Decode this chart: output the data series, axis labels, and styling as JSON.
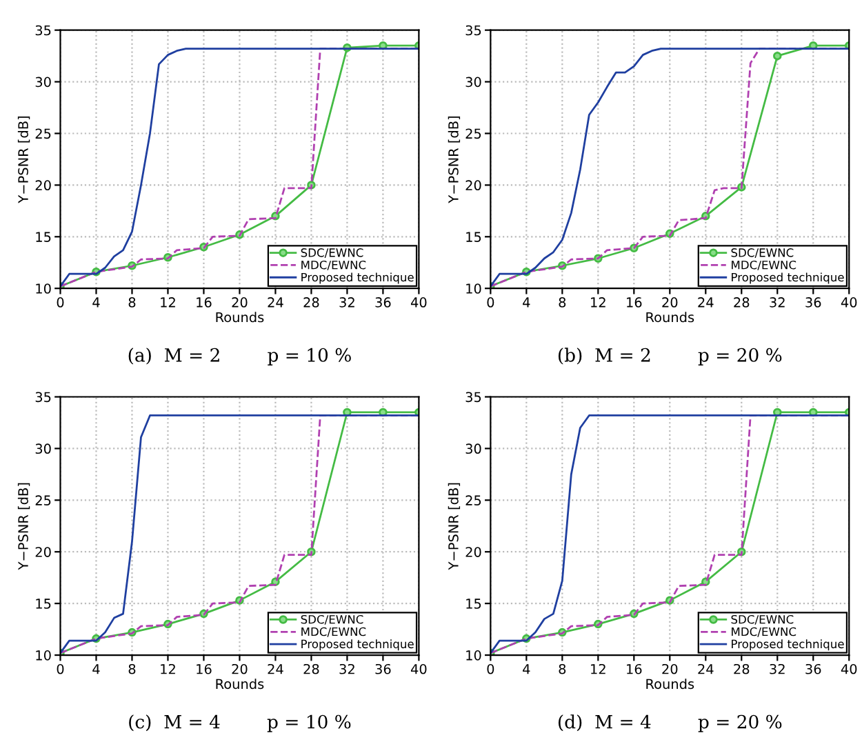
{
  "chart_data": [
    {
      "type": "line",
      "xlabel": "Rounds",
      "ylabel": "Y−PSNR [dB]",
      "xlim": [
        0,
        40
      ],
      "ylim": [
        10,
        35
      ],
      "xticks": [
        0,
        4,
        8,
        12,
        16,
        20,
        24,
        28,
        32,
        36,
        40
      ],
      "yticks": [
        10,
        15,
        20,
        25,
        30,
        35
      ],
      "grid": true,
      "legend": "bottom right",
      "annotations": [
        "(a)  M = 2        p = 10 %"
      ],
      "series": [
        {
          "name": "SDC/EWNC",
          "color": "#44bb44",
          "marker": "circle",
          "line_style": "solid",
          "x": [
            0,
            4,
            8,
            12,
            16,
            20,
            24,
            28,
            32,
            36,
            40
          ],
          "values": [
            10.2,
            11.6,
            12.2,
            13.0,
            14.0,
            15.2,
            17.0,
            20.0,
            33.3,
            33.5,
            33.5
          ]
        },
        {
          "name": "MDC/EWNC",
          "color": "#b040b0",
          "marker": "none",
          "line_style": "dashed",
          "x": [
            0,
            4,
            8,
            9,
            12,
            13,
            16,
            17,
            20,
            21,
            24,
            25,
            28,
            29,
            40
          ],
          "values": [
            10.2,
            11.6,
            12.1,
            12.8,
            12.9,
            13.7,
            13.9,
            15.0,
            15.1,
            16.7,
            16.8,
            19.7,
            19.7,
            33.2,
            33.2
          ]
        },
        {
          "name": "Proposed technique",
          "color": "#1f3fa0",
          "marker": "none",
          "line_style": "solid",
          "x": [
            0,
            1,
            4,
            5,
            6,
            7,
            8,
            9,
            10,
            11,
            12,
            13,
            14,
            40
          ],
          "values": [
            10.2,
            11.4,
            11.4,
            12.0,
            13.1,
            13.7,
            15.5,
            20.0,
            25.0,
            31.7,
            32.6,
            33.0,
            33.2,
            33.2
          ]
        }
      ]
    },
    {
      "type": "line",
      "xlabel": "Rounds",
      "ylabel": "Y−PSNR [dB]",
      "xlim": [
        0,
        40
      ],
      "ylim": [
        10,
        35
      ],
      "xticks": [
        0,
        4,
        8,
        12,
        16,
        20,
        24,
        28,
        32,
        36,
        40
      ],
      "yticks": [
        10,
        15,
        20,
        25,
        30,
        35
      ],
      "grid": true,
      "legend": "bottom right",
      "annotations": [
        "(b)  M = 2        p = 20 %"
      ],
      "series": [
        {
          "name": "SDC/EWNC",
          "color": "#44bb44",
          "marker": "circle",
          "line_style": "solid",
          "x": [
            0,
            4,
            8,
            12,
            16,
            20,
            24,
            28,
            32,
            36,
            40
          ],
          "values": [
            10.2,
            11.6,
            12.2,
            12.9,
            13.9,
            15.3,
            17.0,
            19.8,
            32.5,
            33.5,
            33.5
          ]
        },
        {
          "name": "MDC/EWNC",
          "color": "#b040b0",
          "marker": "none",
          "line_style": "dashed",
          "x": [
            0,
            4,
            8,
            9,
            12,
            13,
            16,
            17,
            20,
            21,
            24,
            25,
            26,
            28,
            29,
            30,
            40
          ],
          "values": [
            10.2,
            11.6,
            12.1,
            12.8,
            12.9,
            13.7,
            13.9,
            15.0,
            15.1,
            16.6,
            16.8,
            19.5,
            19.7,
            19.7,
            31.8,
            33.2,
            33.2
          ]
        },
        {
          "name": "Proposed technique",
          "color": "#1f3fa0",
          "marker": "none",
          "line_style": "solid",
          "x": [
            0,
            1,
            4,
            5,
            6,
            7,
            8,
            9,
            10,
            11,
            12,
            13,
            14,
            15,
            16,
            17,
            18,
            19,
            40
          ],
          "values": [
            10.2,
            11.4,
            11.4,
            12.0,
            12.9,
            13.5,
            14.7,
            17.3,
            21.5,
            26.8,
            28.0,
            29.5,
            30.9,
            30.9,
            31.5,
            32.6,
            33.0,
            33.2,
            33.2
          ]
        }
      ]
    },
    {
      "type": "line",
      "xlabel": "Rounds",
      "ylabel": "Y−PSNR [dB]",
      "xlim": [
        0,
        40
      ],
      "ylim": [
        10,
        35
      ],
      "xticks": [
        0,
        4,
        8,
        12,
        16,
        20,
        24,
        28,
        32,
        36,
        40
      ],
      "yticks": [
        10,
        15,
        20,
        25,
        30,
        35
      ],
      "grid": true,
      "legend": "bottom right",
      "annotations": [
        "(c)  M = 4        p = 10 %"
      ],
      "series": [
        {
          "name": "SDC/EWNC",
          "color": "#44bb44",
          "marker": "circle",
          "line_style": "solid",
          "x": [
            0,
            4,
            8,
            12,
            16,
            20,
            24,
            28,
            32,
            36,
            40
          ],
          "values": [
            10.2,
            11.6,
            12.2,
            13.0,
            14.0,
            15.3,
            17.1,
            20.0,
            33.5,
            33.5,
            33.5
          ]
        },
        {
          "name": "MDC/EWNC",
          "color": "#b040b0",
          "marker": "none",
          "line_style": "dashed",
          "x": [
            0,
            4,
            8,
            9,
            12,
            13,
            16,
            17,
            20,
            21,
            24,
            25,
            28,
            29,
            40
          ],
          "values": [
            10.2,
            11.6,
            12.1,
            12.8,
            12.9,
            13.7,
            13.9,
            15.0,
            15.1,
            16.7,
            16.8,
            19.7,
            19.7,
            33.2,
            33.2
          ]
        },
        {
          "name": "Proposed technique",
          "color": "#1f3fa0",
          "marker": "none",
          "line_style": "solid",
          "x": [
            0,
            1,
            4,
            5,
            6,
            7,
            8,
            9,
            10,
            40
          ],
          "values": [
            10.2,
            11.4,
            11.4,
            12.2,
            13.6,
            14.0,
            21.0,
            31.1,
            33.2,
            33.2
          ]
        }
      ]
    },
    {
      "type": "line",
      "xlabel": "Rounds",
      "ylabel": "Y−PSNR [dB]",
      "xlim": [
        0,
        40
      ],
      "ylim": [
        10,
        35
      ],
      "xticks": [
        0,
        4,
        8,
        12,
        16,
        20,
        24,
        28,
        32,
        36,
        40
      ],
      "yticks": [
        10,
        15,
        20,
        25,
        30,
        35
      ],
      "grid": true,
      "legend": "bottom right",
      "annotations": [
        "(d)  M = 4        p = 20 %"
      ],
      "series": [
        {
          "name": "SDC/EWNC",
          "color": "#44bb44",
          "marker": "circle",
          "line_style": "solid",
          "x": [
            0,
            4,
            8,
            12,
            16,
            20,
            24,
            28,
            32,
            36,
            40
          ],
          "values": [
            10.2,
            11.6,
            12.2,
            13.0,
            14.0,
            15.3,
            17.1,
            20.0,
            33.5,
            33.5,
            33.5
          ]
        },
        {
          "name": "MDC/EWNC",
          "color": "#b040b0",
          "marker": "none",
          "line_style": "dashed",
          "x": [
            0,
            4,
            8,
            9,
            12,
            13,
            16,
            17,
            20,
            21,
            24,
            25,
            28,
            29,
            40
          ],
          "values": [
            10.2,
            11.6,
            12.1,
            12.8,
            12.9,
            13.7,
            13.9,
            15.0,
            15.1,
            16.7,
            16.8,
            19.7,
            19.7,
            33.2,
            33.2
          ]
        },
        {
          "name": "Proposed technique",
          "color": "#1f3fa0",
          "marker": "none",
          "line_style": "solid",
          "x": [
            0,
            1,
            4,
            5,
            6,
            7,
            8,
            9,
            10,
            11,
            40
          ],
          "values": [
            10.2,
            11.4,
            11.4,
            12.2,
            13.5,
            14.0,
            17.2,
            27.5,
            32.0,
            33.2,
            33.2
          ]
        }
      ]
    }
  ]
}
